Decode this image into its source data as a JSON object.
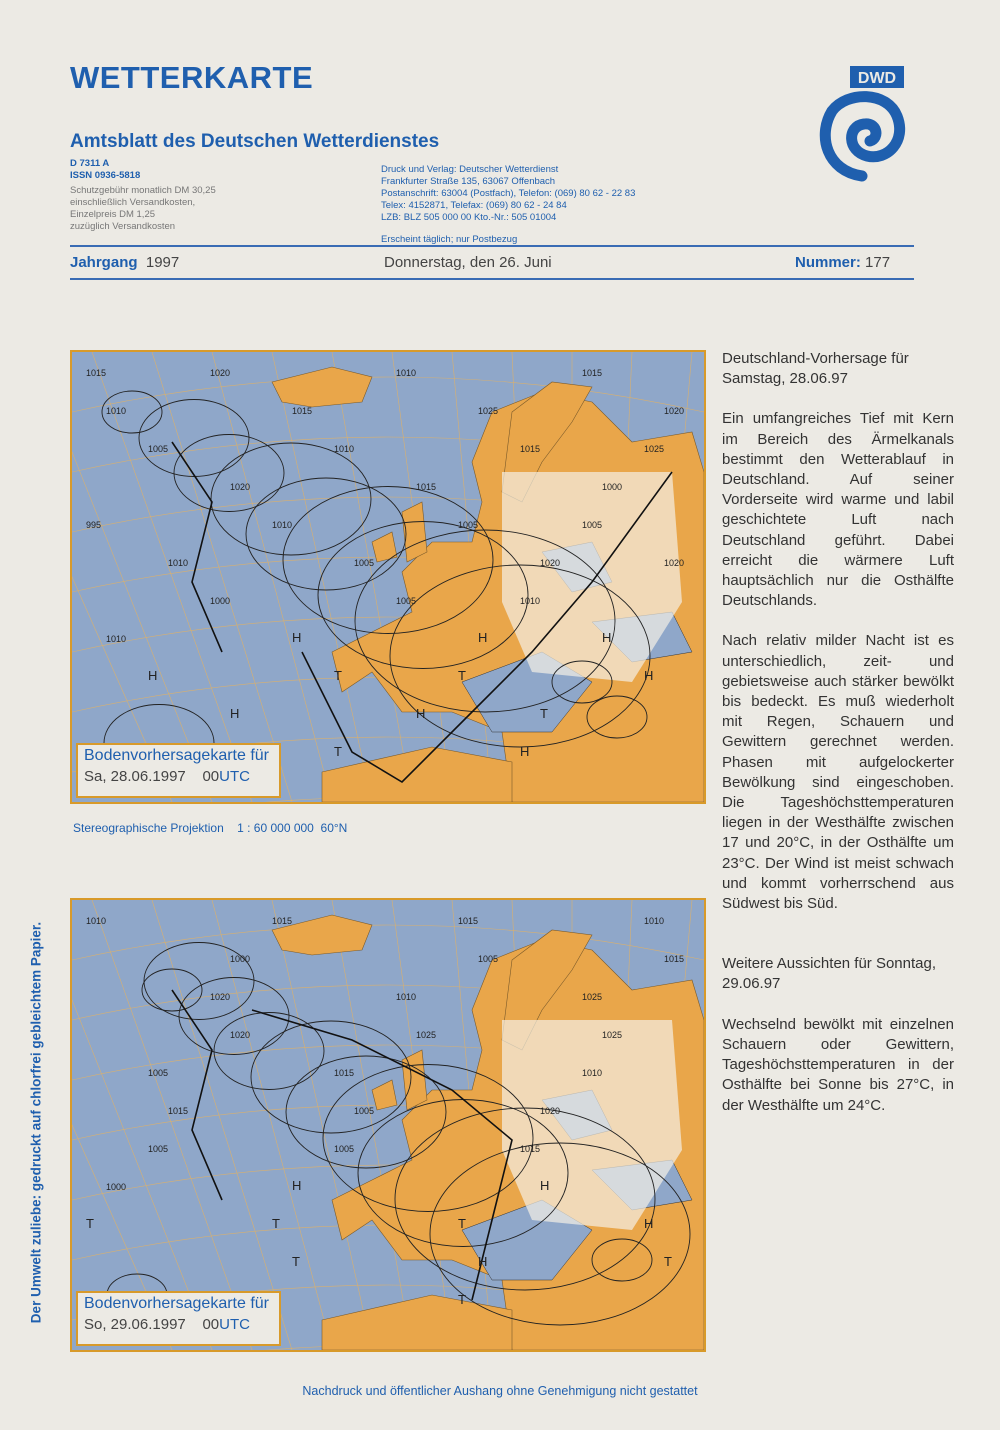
{
  "header": {
    "title": "WETTERKARTE",
    "subtitle": "Amtsblatt des Deutschen Wetterdienstes",
    "logo_text": "DWD",
    "left_info": {
      "code": "D 7311 A",
      "issn": "ISSN 0936-5818",
      "lines": [
        "Schutzgebühr monatlich DM 30,25",
        "einschließlich Versandkosten,",
        "Einzelpreis DM 1,25",
        "zuzüglich Versandkosten"
      ]
    },
    "right_info": {
      "lines": [
        "Druck und Verlag: Deutscher Wetterdienst",
        "Frankfurter Straße 135, 63067 Offenbach",
        "Postanschrift: 63004 (Postfach), Telefon: (069) 80 62 - 22 83",
        "Telex: 4152871, Telefax: (069) 80 62 - 24 84",
        "LZB: BLZ 505 000 00  Kto.-Nr.: 505 01004"
      ],
      "note": "Erscheint täglich; nur Postbezug"
    },
    "colors": {
      "accent": "#1f5fae",
      "frame": "#d89a2a",
      "sea": "#8fa7c9",
      "land": "#e9a64a"
    }
  },
  "issue": {
    "year_label": "Jahrgang",
    "year": "1997",
    "date": "Donnerstag, den 26. Juni",
    "number_label": "Nummer:",
    "number": "177"
  },
  "maps": [
    {
      "caption_line1": "Bodenvorhersagekarte für",
      "caption_date": "Sa, 28.06.1997",
      "caption_hour": "00",
      "caption_utc": "UTC",
      "isobar_labels": [
        "1015",
        "1020",
        "1010",
        "1015",
        "1010",
        "1015",
        "1025",
        "1020",
        "1005",
        "1010",
        "1015",
        "1025",
        "1020",
        "1015",
        "1000",
        "995",
        "1010",
        "1005",
        "1005",
        "1010",
        "1005",
        "1020",
        "1020",
        "1000",
        "1005",
        "1010",
        "1010"
      ],
      "pressure_centers": [
        "H",
        "H",
        "H",
        "H",
        "T",
        "T",
        "H",
        "H",
        "H",
        "T",
        "T",
        "H"
      ]
    },
    {
      "caption_line1": "Bodenvorhersagekarte für",
      "caption_date": "So, 29.06.1997",
      "caption_hour": "00",
      "caption_utc": "UTC",
      "isobar_labels": [
        "1010",
        "1015",
        "1015",
        "1010",
        "1000",
        "1005",
        "1015",
        "1020",
        "1010",
        "1025",
        "1020",
        "1025",
        "1025",
        "1005",
        "1015",
        "1010",
        "1015",
        "1005",
        "1020",
        "1005",
        "1005",
        "1015",
        "1000"
      ],
      "pressure_centers": [
        "H",
        "H",
        "T",
        "T",
        "T",
        "H",
        "T",
        "H",
        "T",
        "T"
      ]
    }
  ],
  "projection": {
    "name": "Stereographische Projektion",
    "scale": "1 : 60 000 000",
    "latitude": "60°N"
  },
  "forecast": {
    "heading1": "Deutschland-Vorhersage für Samstag, 28.06.97",
    "para1": "Ein umfangreiches Tief mit Kern im Bereich des Ärmelkanals bestimmt den Wetterablauf in Deutschland. Auf seiner Vorderseite wird warme und labil geschichtete Luft nach Deutschland geführt. Dabei erreicht die wärmere Luft hauptsächlich nur die Osthälfte Deutschlands.",
    "para2": "Nach relativ milder Nacht ist es unterschiedlich, zeit- und gebietsweise auch stärker bewölkt bis bedeckt. Es muß wiederholt mit Regen, Schauern und Gewittern gerechnet werden. Phasen mit aufgelockerter Bewölkung sind eingeschoben. Die Tageshöchsttemperaturen liegen in der Westhälfte zwischen 17 und 20°C, in der Osthälfte um 23°C. Der Wind ist meist schwach und kommt vorherrschend aus Südwest bis Süd.",
    "heading2": "Weitere Aussichten für Sonntag, 29.06.97",
    "para3": "Wechselnd bewölkt mit einzelnen Schauern oder Gewittern, Tageshöchsttemperaturen in der Osthälfte bei Sonne bis 27°C, in der Westhälfte um 24°C."
  },
  "side_note": "Der Umwelt zuliebe: gedruckt auf chlorfrei gebleichtem Papier.",
  "footer": "Nachdruck und öffentlicher Aushang ohne Genehmigung nicht gestattet"
}
